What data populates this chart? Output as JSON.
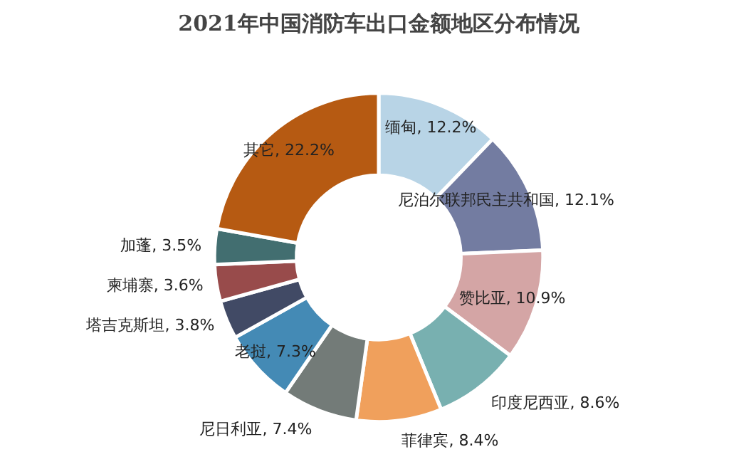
{
  "chart_data": {
    "type": "donut",
    "title": "2021年中国消防车出口金额地区分布情况",
    "categories": [
      "缅甸",
      "尼泊尔联邦民主共和国",
      "赞比亚",
      "印度尼西亚",
      "菲律宾",
      "尼日利亚",
      "老挝",
      "塔吉克斯坦",
      "柬埔寨",
      "加蓬",
      "其它"
    ],
    "values": [
      12.2,
      12.1,
      10.9,
      8.6,
      8.4,
      7.4,
      7.3,
      3.8,
      3.6,
      3.5,
      22.2
    ],
    "value_labels": [
      "12.2%",
      "12.1%",
      "10.9%",
      "8.6%",
      "8.4%",
      "7.4%",
      "7.3%",
      "3.8%",
      "3.6%",
      "3.5%",
      "22.2%"
    ],
    "colors": [
      "#b8d4e6",
      "#737ca1",
      "#d4a5a5",
      "#78b0b0",
      "#f0a05c",
      "#737b78",
      "#448ab5",
      "#414a65",
      "#984b4b",
      "#426e70",
      "#b65a12"
    ]
  }
}
